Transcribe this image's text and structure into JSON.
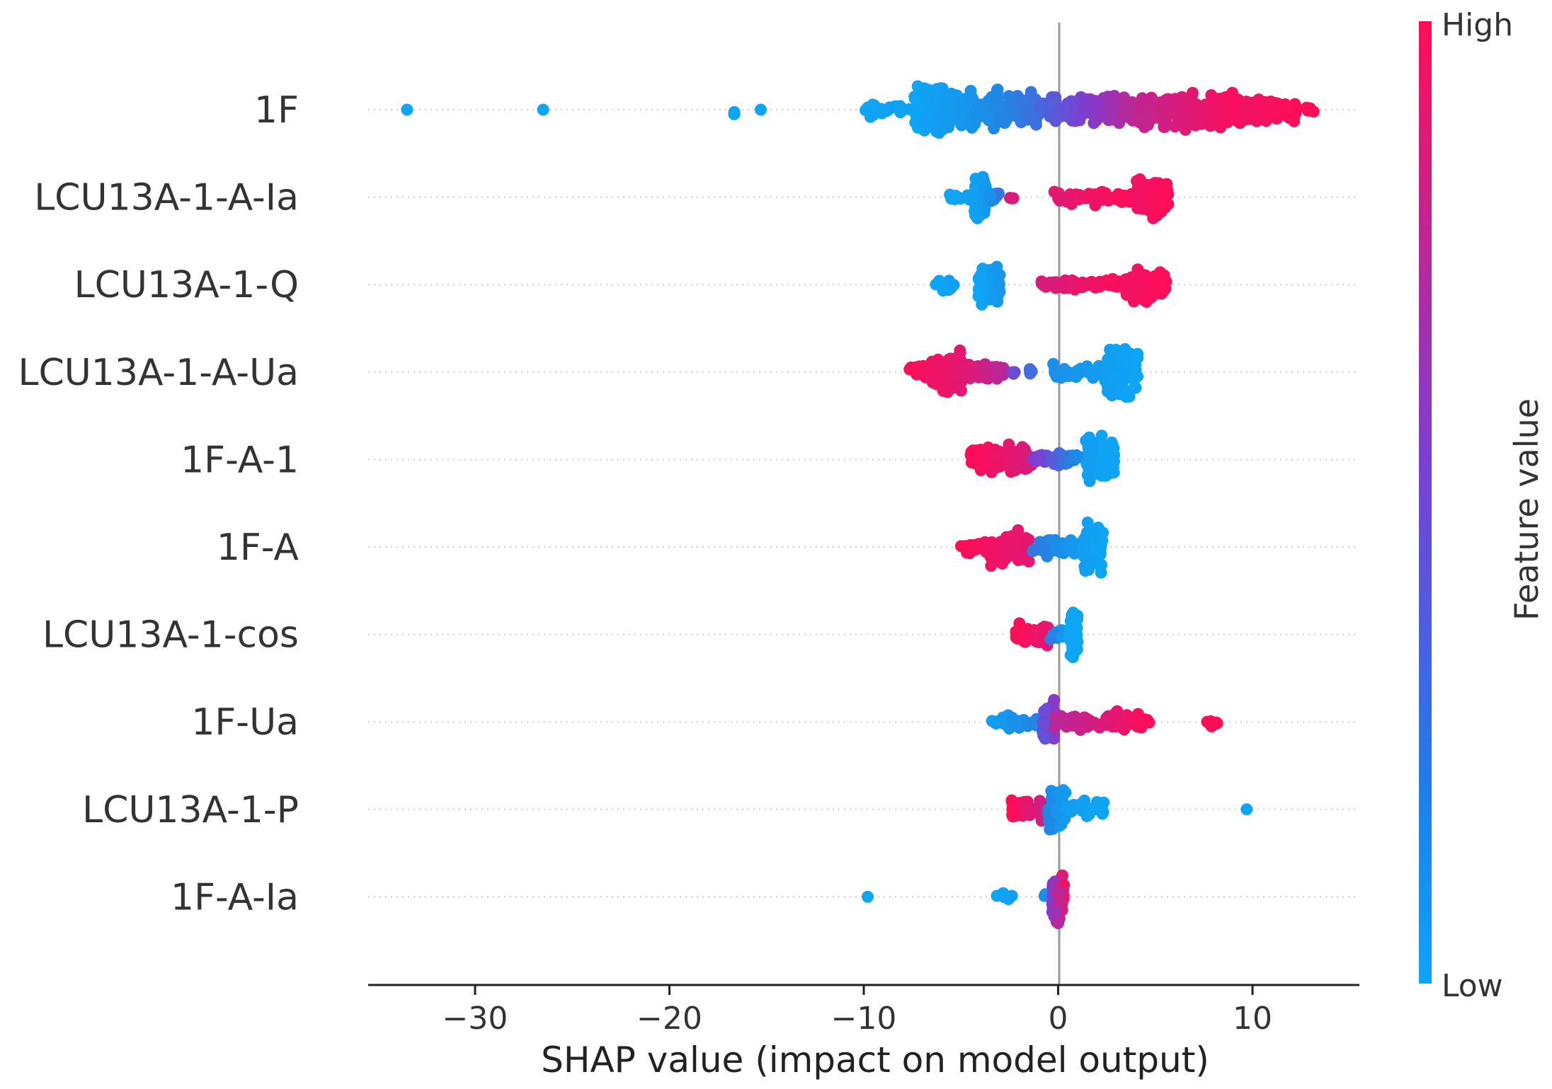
{
  "chart_data": {
    "type": "scatter",
    "subtype": "shap-beeswarm-summary",
    "xlabel": "SHAP value (impact on model output)",
    "xlim": [
      -35.5,
      15.5
    ],
    "xticks": [
      -30,
      -20,
      -10,
      0,
      10
    ],
    "xtick_labels": [
      "−30",
      "−20",
      "−10",
      "0",
      "10"
    ],
    "colorbar": {
      "title": "Feature value",
      "high_label": "High",
      "low_label": "Low",
      "high_color": "#ff0d57",
      "mid_color": "#7d3ed1",
      "low_color": "#1e88e5",
      "low_end_color": "#0ea5f5"
    },
    "zero_line_color": "#999999",
    "features": [
      {
        "name": "1F",
        "clusters": [
          {
            "start": -33.5,
            "end": -33.5,
            "count": 1,
            "spread": 0.2,
            "c0": 0,
            "c1": 0
          },
          {
            "start": -26.5,
            "end": -26.5,
            "count": 1,
            "spread": 0.2,
            "c0": 0,
            "c1": 0
          },
          {
            "start": -16.8,
            "end": -16.6,
            "count": 3,
            "spread": 0.5,
            "c0": 0,
            "c1": 0
          },
          {
            "start": -15.3,
            "end": -15.3,
            "count": 1,
            "spread": 0.2,
            "c0": 0,
            "c1": 0
          },
          {
            "start": -10.2,
            "end": -7.6,
            "count": 18,
            "spread": 0.35,
            "c0": 0,
            "c1": 0.03
          },
          {
            "start": -7.4,
            "end": -5.6,
            "count": 110,
            "spread": 1.0,
            "c0": 0,
            "c1": 0.08
          },
          {
            "start": -5.6,
            "end": -1.0,
            "count": 160,
            "spread": 0.75,
            "c0": 0.06,
            "c1": 0.32
          },
          {
            "start": -1.0,
            "end": 4.0,
            "count": 170,
            "spread": 0.55,
            "c0": 0.35,
            "c1": 0.78
          },
          {
            "start": 4.0,
            "end": 9.5,
            "count": 200,
            "spread": 0.75,
            "c0": 0.78,
            "c1": 1
          },
          {
            "start": 9.5,
            "end": 12.3,
            "count": 90,
            "spread": 0.55,
            "c0": 0.95,
            "c1": 1
          },
          {
            "start": 12.4,
            "end": 13.2,
            "count": 4,
            "spread": 0.15,
            "c0": 1,
            "c1": 1
          }
        ]
      },
      {
        "name": "LCU13A-1-A-Ia",
        "clusters": [
          {
            "start": -5.6,
            "end": -4.5,
            "count": 10,
            "spread": 0.25,
            "c0": 0,
            "c1": 0.05
          },
          {
            "start": -4.3,
            "end": -3.7,
            "count": 70,
            "spread": 0.95,
            "c0": 0.02,
            "c1": 0.1
          },
          {
            "start": -3.6,
            "end": -3.0,
            "count": 10,
            "spread": 0.25,
            "c0": 0.1,
            "c1": 0.3
          },
          {
            "start": -2.6,
            "end": -2.3,
            "count": 3,
            "spread": 0.15,
            "c0": 0.8,
            "c1": 0.9
          },
          {
            "start": -0.2,
            "end": 3.8,
            "count": 60,
            "spread": 0.3,
            "c0": 0.9,
            "c1": 1
          },
          {
            "start": 4.0,
            "end": 5.7,
            "count": 90,
            "spread": 0.8,
            "c0": 0.95,
            "c1": 1
          }
        ]
      },
      {
        "name": "LCU13A-1-Q",
        "clusters": [
          {
            "start": -6.3,
            "end": -5.2,
            "count": 12,
            "spread": 0.3,
            "c0": 0,
            "c1": 0.05
          },
          {
            "start": -4.1,
            "end": -3.0,
            "count": 70,
            "spread": 0.9,
            "c0": 0,
            "c1": 0.1
          },
          {
            "start": -1.0,
            "end": 3.3,
            "count": 55,
            "spread": 0.25,
            "c0": 0.85,
            "c1": 1
          },
          {
            "start": 3.4,
            "end": 5.6,
            "count": 90,
            "spread": 0.75,
            "c0": 0.95,
            "c1": 1
          }
        ]
      },
      {
        "name": "LCU13A-1-A-Ua",
        "clusters": [
          {
            "start": -7.8,
            "end": -6.5,
            "count": 25,
            "spread": 0.35,
            "c0": 1,
            "c1": 0.95
          },
          {
            "start": -6.5,
            "end": -4.8,
            "count": 110,
            "spread": 0.8,
            "c0": 0.95,
            "c1": 0.9
          },
          {
            "start": -4.8,
            "end": -2.8,
            "count": 60,
            "spread": 0.4,
            "c0": 0.9,
            "c1": 0.75
          },
          {
            "start": -2.6,
            "end": -1.2,
            "count": 8,
            "spread": 0.2,
            "c0": 0.55,
            "c1": 0.3
          },
          {
            "start": -0.5,
            "end": 2.5,
            "count": 45,
            "spread": 0.35,
            "c0": 0.15,
            "c1": 0.05
          },
          {
            "start": 2.5,
            "end": 4.1,
            "count": 100,
            "spread": 1.0,
            "c0": 0.05,
            "c1": 0
          }
        ]
      },
      {
        "name": "1F-A-1",
        "clusters": [
          {
            "start": -4.5,
            "end": -1.3,
            "count": 110,
            "spread": 0.55,
            "c0": 1,
            "c1": 0.85
          },
          {
            "start": -1.3,
            "end": 1.3,
            "count": 40,
            "spread": 0.3,
            "c0": 0.6,
            "c1": 0.1
          },
          {
            "start": 1.4,
            "end": 2.9,
            "count": 80,
            "spread": 1.0,
            "c0": 0.05,
            "c1": 0
          }
        ]
      },
      {
        "name": "1F-A",
        "clusters": [
          {
            "start": -5.0,
            "end": -3.5,
            "count": 20,
            "spread": 0.3,
            "c0": 1,
            "c1": 0.95
          },
          {
            "start": -3.5,
            "end": -1.5,
            "count": 80,
            "spread": 0.75,
            "c0": 0.95,
            "c1": 0.9
          },
          {
            "start": -1.5,
            "end": 1.2,
            "count": 40,
            "spread": 0.35,
            "c0": 0.3,
            "c1": 0.05
          },
          {
            "start": 1.3,
            "end": 2.3,
            "count": 80,
            "spread": 1.0,
            "c0": 0.05,
            "c1": 0
          }
        ]
      },
      {
        "name": "LCU13A-1-cos",
        "clusters": [
          {
            "start": -2.2,
            "end": -0.5,
            "count": 60,
            "spread": 0.45,
            "c0": 1,
            "c1": 0.9
          },
          {
            "start": -0.5,
            "end": 0.3,
            "count": 10,
            "spread": 0.25,
            "c0": 0.3,
            "c1": 0.05
          },
          {
            "start": 0.6,
            "end": 1.0,
            "count": 50,
            "spread": 1.0,
            "c0": 0,
            "c1": 0
          }
        ]
      },
      {
        "name": "1F-Ua",
        "clusters": [
          {
            "start": -3.4,
            "end": -0.8,
            "count": 40,
            "spread": 0.3,
            "c0": 0.05,
            "c1": 0.25
          },
          {
            "start": -0.8,
            "end": -0.2,
            "count": 70,
            "spread": 1.0,
            "c0": 0.45,
            "c1": 0.6
          },
          {
            "start": -0.2,
            "end": 4.7,
            "count": 80,
            "spread": 0.4,
            "c0": 0.75,
            "c1": 1
          },
          {
            "start": 7.6,
            "end": 8.2,
            "count": 8,
            "spread": 0.25,
            "c0": 1,
            "c1": 1
          }
        ]
      },
      {
        "name": "LCU13A-1-P",
        "clusters": [
          {
            "start": -2.4,
            "end": -0.6,
            "count": 50,
            "spread": 0.45,
            "c0": 1,
            "c1": 0.8
          },
          {
            "start": -0.5,
            "end": 0.4,
            "count": 80,
            "spread": 1.0,
            "c0": 0.2,
            "c1": 0.05
          },
          {
            "start": 0.4,
            "end": 2.5,
            "count": 40,
            "spread": 0.35,
            "c0": 0.05,
            "c1": 0
          },
          {
            "start": 9.7,
            "end": 9.7,
            "count": 1,
            "spread": 0.2,
            "c0": 0,
            "c1": 0
          }
        ]
      },
      {
        "name": "1F-A-Ia",
        "clusters": [
          {
            "start": -9.8,
            "end": -9.8,
            "count": 1,
            "spread": 0.2,
            "c0": 0,
            "c1": 0
          },
          {
            "start": -3.5,
            "end": -1.8,
            "count": 5,
            "spread": 0.3,
            "c0": 0,
            "c1": 0.05
          },
          {
            "start": -0.8,
            "end": -0.6,
            "count": 2,
            "spread": 0.2,
            "c0": 0.1,
            "c1": 0.2
          },
          {
            "start": -0.3,
            "end": 0.3,
            "count": 80,
            "spread": 1.0,
            "c0": 0.55,
            "c1": 0.95
          }
        ]
      }
    ]
  }
}
